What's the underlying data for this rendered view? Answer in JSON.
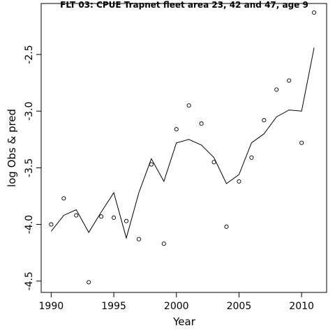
{
  "chart_data": {
    "type": "line",
    "title": "FLT 03: CPUE Trapnet fleet area 23, 42 and 47, age 9",
    "xlabel": "Year",
    "ylabel": "log Obs & pred",
    "xlim": [
      1989.2,
      2012.0
    ],
    "ylim": [
      -4.6,
      -2.05
    ],
    "x_ticks": [
      1990,
      1995,
      2000,
      2005,
      2010
    ],
    "y_ticks": [
      -4.5,
      -4.0,
      -3.5,
      -3.0,
      -2.5
    ],
    "y_tick_labels": [
      "-4.5",
      "-4.0",
      "-3.5",
      "-3.0",
      "-2.5"
    ],
    "grid": false,
    "series": [
      {
        "style": "points",
        "marker": "open-circle",
        "x": [
          1990,
          1991,
          1992,
          1993,
          1994,
          1995,
          1996,
          1997,
          1998,
          1999,
          2000,
          2001,
          2002,
          2003,
          2004,
          2005,
          2006,
          2007,
          2008,
          2009,
          2010,
          2011
        ],
        "y": [
          -4.0,
          -3.77,
          -3.92,
          -4.51,
          -3.93,
          -3.94,
          -3.97,
          -4.13,
          -3.47,
          -4.17,
          -3.16,
          -2.95,
          -3.11,
          -3.45,
          -4.02,
          -3.62,
          -3.41,
          -3.08,
          -2.81,
          -2.73,
          -3.28,
          -2.13
        ]
      },
      {
        "style": "line",
        "x": [
          1990,
          1991,
          1992,
          1993,
          1994,
          1995,
          1996,
          1997,
          1998,
          1999,
          2000,
          2001,
          2002,
          2003,
          2004,
          2005,
          2006,
          2007,
          2008,
          2009,
          2010,
          2011
        ],
        "y": [
          -4.06,
          -3.92,
          -3.87,
          -4.07,
          -3.89,
          -3.72,
          -4.12,
          -3.72,
          -3.42,
          -3.62,
          -3.28,
          -3.25,
          -3.3,
          -3.41,
          -3.64,
          -3.56,
          -3.28,
          -3.2,
          -3.05,
          -2.99,
          -3.0,
          -2.44
        ]
      }
    ]
  }
}
